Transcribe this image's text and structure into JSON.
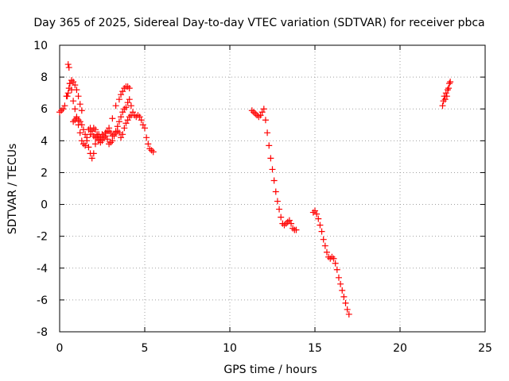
{
  "chart_data": {
    "type": "scatter",
    "title": "Day 365 of 2025, Sidereal Day-to-day VTEC variation (SDTVAR) for receiver pbca",
    "xlabel": "GPS time / hours",
    "ylabel": "SDTVAR / TECUs",
    "xlim": [
      0,
      25
    ],
    "ylim": [
      -8,
      10
    ],
    "xticks": [
      0,
      5,
      10,
      15,
      20,
      25
    ],
    "yticks": [
      -8,
      -6,
      -4,
      -2,
      0,
      2,
      4,
      6,
      8,
      10
    ],
    "xtick_labels": [
      "0",
      "5",
      "10",
      "15",
      "20",
      "25"
    ],
    "ytick_labels": [
      "-8",
      "-6",
      "-4",
      "-2",
      "0",
      "2",
      "4",
      "6",
      "8",
      "10"
    ],
    "grid": true,
    "marker": "+",
    "color": "#ff0000",
    "series": [
      {
        "name": "SDTVAR",
        "x": [
          0.0,
          0.1,
          0.2,
          0.3,
          0.4,
          0.5,
          0.55,
          0.6,
          0.7,
          0.8,
          0.9,
          1.0,
          1.1,
          1.2,
          1.3,
          1.4,
          1.5,
          1.6,
          1.7,
          1.8,
          1.9,
          2.0,
          2.1,
          2.2,
          2.3,
          2.5,
          2.7,
          2.9,
          3.1,
          3.3,
          3.5,
          3.6,
          3.7,
          3.8,
          3.9,
          4.0,
          4.1,
          4.2,
          4.3,
          4.4,
          4.5,
          4.6,
          4.7,
          4.8,
          4.9,
          5.0,
          5.1,
          5.2,
          5.3,
          5.4,
          5.5,
          0.45,
          0.5,
          0.55,
          0.6,
          0.7,
          0.8,
          0.9,
          1.0,
          1.1,
          1.2,
          1.3,
          0.8,
          0.9,
          1.0,
          1.1,
          1.2,
          1.3,
          1.4,
          1.5,
          1.6,
          1.7,
          1.8,
          1.9,
          2.0,
          2.1,
          2.2,
          2.3,
          2.4,
          2.5,
          2.6,
          2.7,
          2.8,
          2.9,
          3.0,
          3.1,
          3.2,
          3.3,
          3.4,
          3.5,
          3.6,
          3.7,
          3.8,
          3.9,
          4.0,
          4.1,
          1.8,
          1.9,
          2.0,
          2.1,
          2.2,
          2.3,
          2.4,
          2.5,
          2.6,
          2.7,
          2.8,
          2.9,
          3.0,
          3.1,
          3.2,
          3.3,
          3.4,
          3.5,
          3.6,
          3.7,
          3.8,
          3.9,
          4.0,
          4.1,
          4.2,
          11.3,
          11.4,
          11.5,
          11.6,
          11.7,
          11.8,
          11.9,
          12.0,
          12.1,
          12.2,
          12.3,
          12.4,
          12.5,
          12.6,
          12.7,
          12.8,
          12.9,
          13.0,
          13.1,
          13.2,
          13.3,
          13.4,
          13.5,
          13.6,
          13.7,
          13.8,
          13.9,
          14.9,
          15.0,
          15.1,
          15.2,
          15.3,
          15.4,
          15.5,
          15.6,
          15.7,
          15.8,
          15.9,
          16.0,
          16.1,
          16.2,
          16.3,
          16.4,
          16.5,
          16.6,
          16.7,
          16.8,
          16.9,
          17.0,
          22.5,
          22.55,
          22.6,
          22.65,
          22.7,
          22.75,
          22.8,
          22.85,
          22.9,
          22.95
        ],
        "y": [
          5.8,
          5.9,
          6.0,
          6.2,
          6.8,
          8.8,
          8.6,
          7.6,
          7.2,
          6.5,
          6.0,
          5.5,
          5.0,
          4.5,
          4.0,
          3.8,
          3.7,
          4.2,
          4.7,
          4.8,
          4.6,
          4.3,
          4.2,
          4.3,
          4.4,
          4.4,
          4.5,
          4.8,
          5.4,
          6.2,
          6.6,
          6.9,
          7.1,
          7.3,
          7.4,
          7.4,
          7.3,
          6.2,
          5.8,
          5.6,
          5.5,
          5.6,
          5.5,
          5.3,
          5.0,
          4.8,
          4.2,
          3.8,
          3.5,
          3.4,
          3.3,
          6.8,
          7.0,
          7.3,
          7.6,
          7.8,
          7.7,
          7.5,
          7.2,
          6.8,
          6.3,
          5.9,
          5.2,
          5.3,
          5.4,
          5.3,
          5.2,
          5.0,
          4.7,
          4.4,
          4.0,
          3.6,
          3.2,
          2.9,
          3.2,
          3.8,
          4.2,
          4.0,
          4.2,
          4.1,
          4.3,
          4.5,
          4.6,
          4.6,
          4.5,
          4.3,
          4.4,
          4.6,
          4.9,
          5.2,
          5.5,
          5.8,
          6.0,
          6.1,
          6.4,
          6.6,
          4.4,
          4.6,
          4.8,
          4.7,
          4.4,
          4.1,
          3.9,
          4.0,
          4.2,
          4.3,
          4.1,
          3.8,
          3.9,
          4.0,
          4.3,
          4.5,
          4.6,
          4.5,
          4.2,
          4.4,
          4.8,
          5.1,
          5.3,
          5.5,
          5.6,
          5.9,
          5.8,
          5.7,
          5.6,
          5.5,
          5.6,
          5.8,
          6.0,
          5.3,
          4.5,
          3.7,
          2.9,
          2.2,
          1.5,
          0.8,
          0.2,
          -0.3,
          -0.8,
          -1.2,
          -1.3,
          -1.2,
          -1.1,
          -1.0,
          -1.2,
          -1.5,
          -1.6,
          -1.6,
          -0.5,
          -0.4,
          -0.6,
          -0.9,
          -1.3,
          -1.7,
          -2.2,
          -2.6,
          -3.0,
          -3.3,
          -3.4,
          -3.3,
          -3.4,
          -3.7,
          -4.1,
          -4.6,
          -5.0,
          -5.4,
          -5.8,
          -6.2,
          -6.6,
          -6.9,
          6.2,
          6.5,
          6.8,
          6.6,
          7.0,
          6.8,
          7.2,
          7.3,
          7.6,
          7.7
        ]
      }
    ]
  }
}
